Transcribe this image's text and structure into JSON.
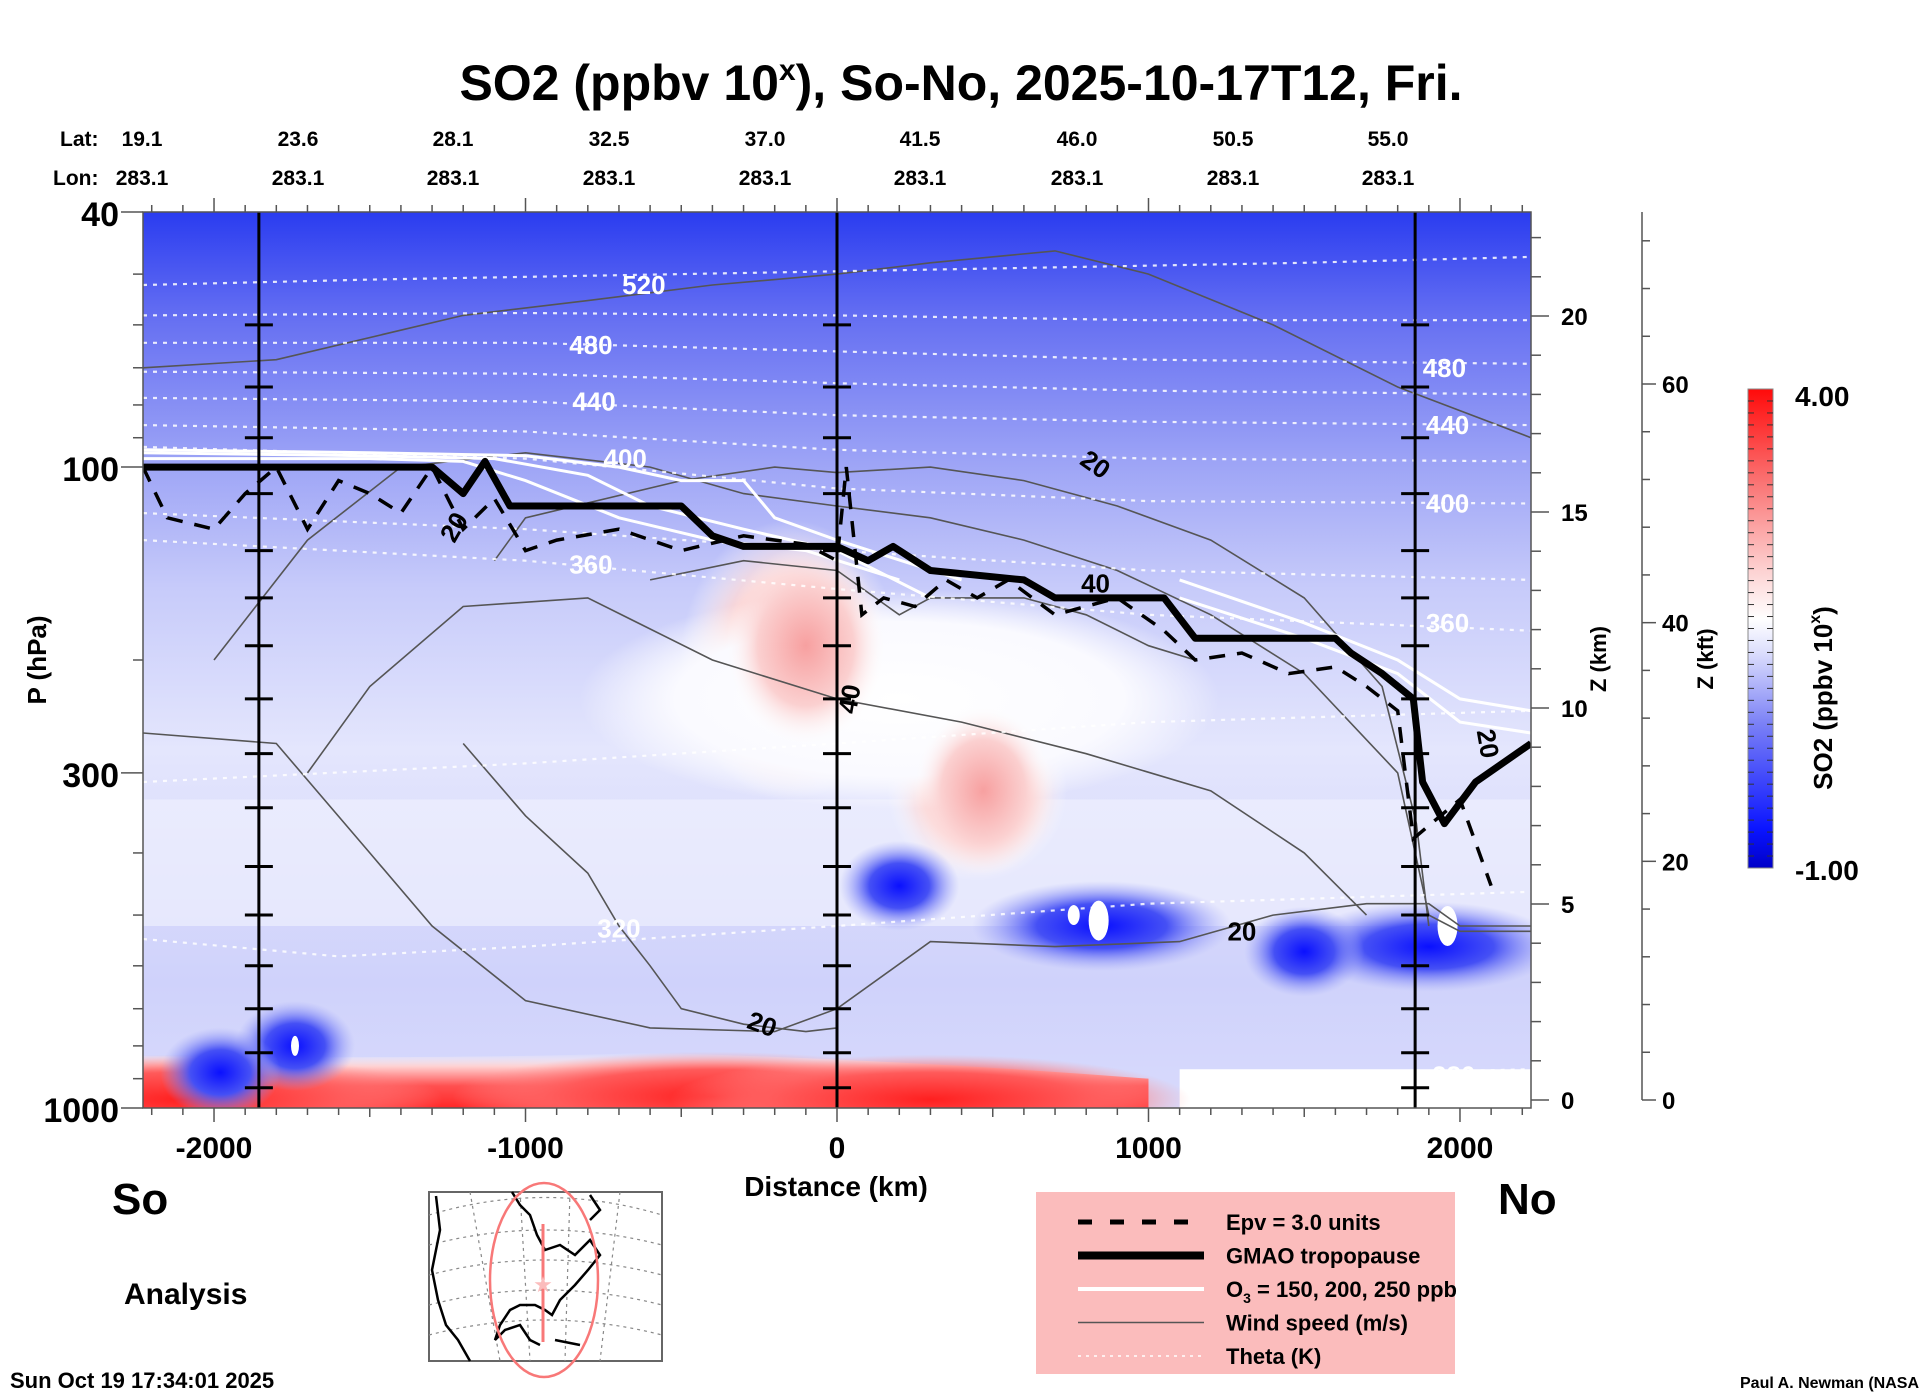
{
  "chart_data": {
    "type": "heatmap",
    "title": "SO2 (ppbv 10",
    "title_superscript": "x",
    "title_suffix": "), So-No, 2025-10-17T12, Fri.",
    "xlabel": "Distance (km)",
    "ylabel": "P (hPa)",
    "xlim": [
      -2228,
      2228
    ],
    "ylim_hpa": [
      1000,
      40
    ],
    "y_scale": "log",
    "x_ticks": [
      -2000,
      -1000,
      0,
      1000,
      2000
    ],
    "x_tick_labels": [
      "-2000",
      "-1000",
      "0",
      "1000",
      "2000"
    ],
    "y_ticks": [
      40,
      100,
      300,
      1000
    ],
    "y_tick_labels": [
      "40",
      "100",
      "300",
      "1000"
    ],
    "vertical_lines_km": [
      -1856,
      0,
      1856
    ],
    "top_axis": {
      "lat_label": "Lat:",
      "lon_label": "Lon:",
      "positions_km": [
        -2228,
        -1728,
        -1228,
        -728,
        -228,
        272,
        772,
        1272,
        1772
      ],
      "lat": [
        "19.1",
        "23.6",
        "28.1",
        "32.5",
        "37.0",
        "41.5",
        "46.0",
        "50.5",
        "55.0"
      ],
      "lon": [
        "283.1",
        "283.1",
        "283.1",
        "283.1",
        "283.1",
        "283.1",
        "283.1",
        "283.1",
        "283.1"
      ]
    },
    "z_km_axis": {
      "label": "Z (km)",
      "ticks": [
        0,
        5,
        10,
        15,
        20
      ],
      "range": [
        0,
        22.7
      ]
    },
    "z_kft_axis": {
      "label": "Z (kft)",
      "ticks": [
        0,
        20,
        40,
        60
      ],
      "range": [
        0,
        74.5
      ]
    },
    "colorbar": {
      "label": "SO2 (ppbv 10",
      "label_superscript": "x",
      "label_suffix": ")",
      "min": -1.0,
      "max": 4.0,
      "min_label": "-1.00",
      "max_label": "4.00",
      "levels": 40,
      "colors": {
        "low": "#0000cc",
        "mid": "#ffffff",
        "high": "#ff0000"
      },
      "white_at": 0.48
    },
    "theta_contours": [
      {
        "label": "520",
        "pts": [
          [
            -2228,
            52
          ],
          [
            -1500,
            51
          ],
          [
            -500,
            50
          ],
          [
            500,
            49
          ],
          [
            1500,
            48
          ],
          [
            2228,
            47
          ]
        ],
        "label_at": [
          -620,
          52
        ]
      },
      {
        "label": "",
        "pts": [
          [
            -2228,
            58
          ],
          [
            -1000,
            57.5
          ],
          [
            0,
            58
          ],
          [
            1000,
            59
          ],
          [
            2228,
            59
          ]
        ]
      },
      {
        "label": "480",
        "pts": [
          [
            -2228,
            64
          ],
          [
            -1000,
            64
          ],
          [
            0,
            66
          ],
          [
            1000,
            68
          ],
          [
            2228,
            69
          ]
        ],
        "label_at": [
          -790,
          64.5
        ],
        "label_at2": [
          1950,
          70
        ]
      },
      {
        "label": "",
        "pts": [
          [
            -2228,
            71
          ],
          [
            -1000,
            71.5
          ],
          [
            0,
            74
          ],
          [
            1000,
            76
          ],
          [
            2228,
            77
          ]
        ]
      },
      {
        "label": "440",
        "pts": [
          [
            -2228,
            78
          ],
          [
            -1000,
            79
          ],
          [
            0,
            83
          ],
          [
            1000,
            85
          ],
          [
            2228,
            86
          ]
        ],
        "label_at": [
          -780,
          79
        ],
        "label_at2": [
          1960,
          86
        ]
      },
      {
        "label": "",
        "pts": [
          [
            -2228,
            86
          ],
          [
            -1000,
            88
          ],
          [
            0,
            94
          ],
          [
            1000,
            97
          ],
          [
            2228,
            98
          ]
        ]
      },
      {
        "label": "400",
        "pts": [
          [
            -2228,
            93
          ],
          [
            -1000,
            97
          ],
          [
            0,
            108
          ],
          [
            1000,
            113
          ],
          [
            2228,
            114
          ]
        ],
        "label_at": [
          -680,
          97
        ],
        "label_at2": [
          1960,
          114
        ]
      },
      {
        "label": "",
        "pts": [
          [
            -2228,
            118
          ],
          [
            -1000,
            125
          ],
          [
            0,
            135
          ],
          [
            1000,
            145
          ],
          [
            2228,
            150
          ]
        ]
      },
      {
        "label": "360",
        "pts": [
          [
            -2228,
            130
          ],
          [
            -1000,
            140
          ],
          [
            0,
            155
          ],
          [
            1000,
            170
          ],
          [
            2228,
            180
          ]
        ],
        "label_at": [
          -790,
          142
        ],
        "label_at2": [
          1960,
          175
        ]
      },
      {
        "label": "",
        "pts": [
          [
            -2228,
            310
          ],
          [
            -1000,
            290
          ],
          [
            0,
            270
          ],
          [
            1000,
            250
          ],
          [
            2228,
            240
          ]
        ]
      },
      {
        "label": "320",
        "pts": [
          [
            -2228,
            545
          ],
          [
            -1600,
            580
          ],
          [
            -1000,
            560
          ],
          [
            0,
            520
          ],
          [
            1000,
            480
          ],
          [
            2228,
            460
          ]
        ],
        "label_at": [
          -700,
          525
        ]
      },
      {
        "label": "280",
        "pts": [
          [
            1200,
            900
          ],
          [
            1800,
            880
          ],
          [
            2228,
            870
          ]
        ],
        "label_at": [
          1980,
          890
        ]
      }
    ],
    "tropopause_gmao": [
      [
        -2228,
        100
      ],
      [
        -1300,
        100
      ],
      [
        -1200,
        110
      ],
      [
        -1130,
        98
      ],
      [
        -1050,
        115
      ],
      [
        -500,
        115
      ],
      [
        -400,
        128
      ],
      [
        -300,
        133
      ],
      [
        0,
        133
      ],
      [
        100,
        140
      ],
      [
        180,
        133
      ],
      [
        300,
        145
      ],
      [
        600,
        150
      ],
      [
        700,
        160
      ],
      [
        1050,
        160
      ],
      [
        1150,
        185
      ],
      [
        1600,
        185
      ],
      [
        1650,
        195
      ],
      [
        1750,
        210
      ],
      [
        1850,
        230
      ],
      [
        1880,
        310
      ],
      [
        1950,
        360
      ],
      [
        2050,
        310
      ],
      [
        2228,
        270
      ]
    ],
    "epv_3": [
      [
        -2228,
        100
      ],
      [
        -2150,
        120
      ],
      [
        -2000,
        125
      ],
      [
        -1900,
        110
      ],
      [
        -1800,
        100
      ],
      [
        -1700,
        125
      ],
      [
        -1600,
        105
      ],
      [
        -1500,
        110
      ],
      [
        -1400,
        118
      ],
      [
        -1300,
        100
      ],
      [
        -1200,
        125
      ],
      [
        -1100,
        112
      ],
      [
        -1000,
        135
      ],
      [
        -900,
        130
      ],
      [
        -700,
        125
      ],
      [
        -500,
        135
      ],
      [
        -300,
        128
      ],
      [
        -100,
        132
      ],
      [
        0,
        140
      ],
      [
        30,
        100
      ],
      [
        80,
        170
      ],
      [
        150,
        160
      ],
      [
        250,
        165
      ],
      [
        350,
        150
      ],
      [
        450,
        160
      ],
      [
        550,
        150
      ],
      [
        700,
        170
      ],
      [
        900,
        160
      ],
      [
        1050,
        180
      ],
      [
        1150,
        200
      ],
      [
        1300,
        195
      ],
      [
        1450,
        210
      ],
      [
        1600,
        205
      ],
      [
        1700,
        220
      ],
      [
        1800,
        240
      ],
      [
        1850,
        380
      ],
      [
        2000,
        330
      ],
      [
        2100,
        450
      ]
    ],
    "ozone": [
      [
        [
          -2228,
          97
        ],
        [
          -1500,
          97
        ],
        [
          -1200,
          98
        ],
        [
          -1000,
          105
        ],
        [
          -700,
          120
        ],
        [
          -400,
          130
        ],
        [
          -100,
          135
        ],
        [
          200,
          150
        ]
      ],
      [
        [
          -2228,
          95
        ],
        [
          -1500,
          96
        ],
        [
          -1100,
          97
        ],
        [
          -800,
          103
        ],
        [
          -600,
          115
        ],
        [
          -300,
          125
        ],
        [
          0,
          135
        ],
        [
          300,
          160
        ]
      ],
      [
        [
          -2228,
          94
        ],
        [
          -1500,
          95
        ],
        [
          -1000,
          96
        ],
        [
          -700,
          100
        ],
        [
          -500,
          105
        ],
        [
          -300,
          105
        ],
        [
          -200,
          120
        ],
        [
          0,
          130
        ],
        [
          400,
          150
        ]
      ]
    ],
    "ozone_right": [
      [
        [
          1100,
          150
        ],
        [
          1500,
          175
        ],
        [
          1800,
          200
        ],
        [
          2000,
          230
        ],
        [
          2228,
          240
        ]
      ],
      [
        [
          1100,
          160
        ],
        [
          1500,
          185
        ],
        [
          1800,
          210
        ],
        [
          2000,
          250
        ],
        [
          2228,
          260
        ]
      ]
    ],
    "wind_contours": [
      {
        "label": "20",
        "pts": [
          [
            -2228,
            70
          ],
          [
            -1800,
            68
          ],
          [
            -1200,
            58
          ],
          [
            -800,
            55
          ],
          [
            -400,
            52
          ],
          [
            0,
            50
          ],
          [
            300,
            48
          ],
          [
            700,
            46
          ],
          [
            1000,
            50
          ],
          [
            1400,
            60
          ],
          [
            1800,
            75
          ],
          [
            2228,
            90
          ]
        ]
      },
      {
        "label": "20",
        "pts": [
          [
            -1100,
            140
          ],
          [
            -1000,
            120
          ],
          [
            -500,
            105
          ],
          [
            -200,
            100
          ],
          [
            0,
            102
          ],
          [
            300,
            100
          ],
          [
            600,
            105
          ],
          [
            900,
            115
          ],
          [
            1200,
            130
          ],
          [
            1500,
            160
          ],
          [
            1750,
            220
          ],
          [
            1860,
            360
          ],
          [
            1900,
            520
          ]
        ],
        "label_at": [
          820,
          97
        ]
      },
      {
        "label": "40",
        "pts": [
          [
            -2000,
            200
          ],
          [
            -1700,
            130
          ],
          [
            -1400,
            100
          ],
          [
            -1000,
            95
          ],
          [
            -600,
            100
          ],
          [
            -300,
            110
          ],
          [
            0,
            115
          ],
          [
            300,
            120
          ],
          [
            600,
            130
          ],
          [
            900,
            145
          ],
          [
            1200,
            170
          ],
          [
            1500,
            210
          ],
          [
            1800,
            300
          ],
          [
            1900,
            500
          ],
          [
            2000,
            530
          ],
          [
            2228,
            530
          ]
        ],
        "label_at": [
          800,
          150
        ]
      },
      {
        "label": "40",
        "pts": [
          [
            -600,
            150
          ],
          [
            -300,
            140
          ],
          [
            0,
            145
          ],
          [
            200,
            170
          ],
          [
            300,
            160
          ],
          [
            600,
            160
          ],
          [
            800,
            170
          ],
          [
            1000,
            190
          ],
          [
            1150,
            200
          ]
        ]
      },
      {
        "label": "20",
        "pts": [
          [
            -2228,
            260
          ],
          [
            -1800,
            270
          ],
          [
            -1500,
            400
          ],
          [
            -1300,
            520
          ],
          [
            -1000,
            680
          ],
          [
            -600,
            750
          ],
          [
            -200,
            760
          ],
          [
            0,
            700
          ],
          [
            300,
            550
          ],
          [
            700,
            560
          ],
          [
            1100,
            550
          ],
          [
            1400,
            500
          ],
          [
            1700,
            480
          ],
          [
            1900,
            480
          ],
          [
            2000,
            520
          ],
          [
            2228,
            520
          ]
        ],
        "label_at": [
          1050,
          550
        ]
      },
      {
        "label": "20",
        "pts": [
          [
            -1200,
            270
          ],
          [
            -1000,
            350
          ],
          [
            -800,
            430
          ],
          [
            -700,
            520
          ],
          [
            -600,
            600
          ],
          [
            -500,
            700
          ],
          [
            -300,
            740
          ],
          [
            -100,
            760
          ],
          [
            0,
            750
          ]
        ],
        "label_at": [
          -350,
          730
        ]
      },
      {
        "label": "",
        "pts": [
          [
            -1700,
            300
          ],
          [
            -1500,
            220
          ],
          [
            -1200,
            165
          ],
          [
            -800,
            160
          ],
          [
            -400,
            200
          ],
          [
            0,
            230
          ],
          [
            400,
            250
          ],
          [
            800,
            280
          ],
          [
            1200,
            320
          ],
          [
            1500,
            400
          ],
          [
            1700,
            500
          ]
        ]
      }
    ],
    "wind_labels": [
      {
        "text": "20",
        "km": 830,
        "hpa": 99,
        "rot": 35
      },
      {
        "text": "20",
        "km": -1230,
        "hpa": 124,
        "rot": -60
      },
      {
        "text": "40",
        "km": 830,
        "hpa": 152,
        "rot": 0
      },
      {
        "text": "40",
        "km": 40,
        "hpa": 230,
        "rot": -80
      },
      {
        "text": "20",
        "km": 1300,
        "hpa": 530,
        "rot": 0
      },
      {
        "text": "20",
        "km": -240,
        "hpa": 740,
        "rot": 20
      },
      {
        "text": "20",
        "km": 2090,
        "hpa": 270,
        "rot": 80
      }
    ],
    "so2_features": [
      {
        "kind": "high",
        "km": -400,
        "hpa": 960,
        "value": 3.5
      },
      {
        "kind": "high",
        "km": 300,
        "hpa": 970,
        "value": 3.5
      },
      {
        "kind": "high",
        "km": -2100,
        "hpa": 970,
        "value": 3.5
      },
      {
        "kind": "high",
        "km": -150,
        "hpa": 200,
        "value": 1.5
      },
      {
        "kind": "high",
        "km": 450,
        "hpa": 320,
        "value": 2.0
      },
      {
        "kind": "low",
        "km": 200,
        "hpa": 450,
        "value": -0.8
      },
      {
        "kind": "low",
        "km": 850,
        "hpa": 520,
        "value": -1.0
      },
      {
        "kind": "low",
        "km": 1900,
        "hpa": 560,
        "value": -1.0
      },
      {
        "kind": "low",
        "km": 1500,
        "hpa": 570,
        "value": -0.9
      },
      {
        "kind": "low",
        "km": -1740,
        "hpa": 800,
        "value": -0.9
      },
      {
        "kind": "low",
        "km": -1980,
        "hpa": 880,
        "value": -0.9
      }
    ]
  },
  "labels": {
    "south": "So",
    "north": "No",
    "analysis": "Analysis",
    "timestamp": "Sun Oct 19 17:34:01 2025",
    "credit": "Paul A. Newman (NASA"
  },
  "legend": {
    "items": [
      {
        "style": "dashed",
        "label": "Epv = 3.0 units"
      },
      {
        "style": "thick",
        "label": "GMAO tropopause"
      },
      {
        "style": "white",
        "label": "O",
        "sub": "3",
        "label_rest": " = 150, 200, 250 ppb"
      },
      {
        "style": "thin",
        "label": "Wind speed (m/s)"
      },
      {
        "style": "dotted",
        "label": "Theta (K)"
      }
    ],
    "background": "#fbbcbc"
  },
  "map": {
    "track_color": "#f87878"
  }
}
